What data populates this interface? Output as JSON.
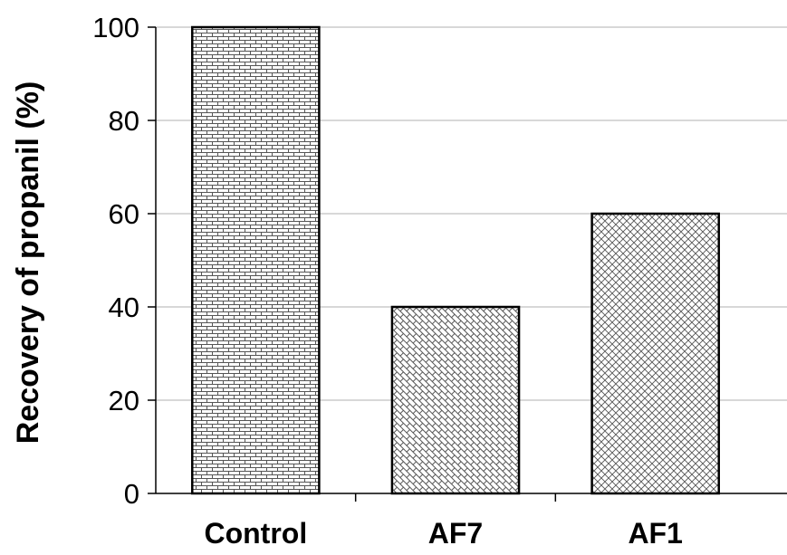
{
  "chart_data": {
    "type": "bar",
    "title": "",
    "xlabel": "",
    "ylabel": "Recovery of propanil (%)",
    "categories": [
      "Control",
      "AF7",
      "AF1"
    ],
    "values": [
      100,
      40,
      60
    ],
    "ylim": [
      0,
      100
    ],
    "yticks": [
      0,
      20,
      40,
      60,
      80,
      100
    ],
    "grid": "horizontal",
    "bar_patterns": [
      "brick",
      "diagonal-brick",
      "crosshatch"
    ],
    "colors": {
      "bar_stroke": "#000000",
      "pattern_line": "#555555",
      "bar_fill": "#ffffff",
      "grid": "#c0c0c0",
      "axis": "#000000"
    }
  }
}
